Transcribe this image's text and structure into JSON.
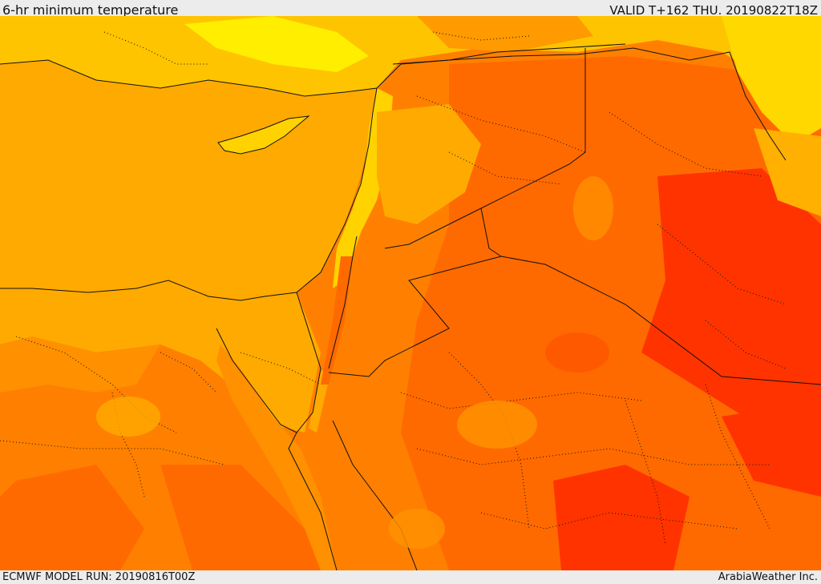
{
  "header": {
    "title": "6-hr minimum temperature",
    "valid": "VALID T+162 THU. 20190822T18Z"
  },
  "footer": {
    "model_run": "ECMWF MODEL RUN: 20190816T00Z",
    "credit": "ArabiaWeather Inc."
  },
  "colors": {
    "sea": "#ffaa00",
    "warm": "#ff8000",
    "hotter": "#ff6600",
    "hottest": "#ff3300",
    "cool": "#ffd000",
    "coolest": "#ffff00",
    "border": "#111111"
  }
}
